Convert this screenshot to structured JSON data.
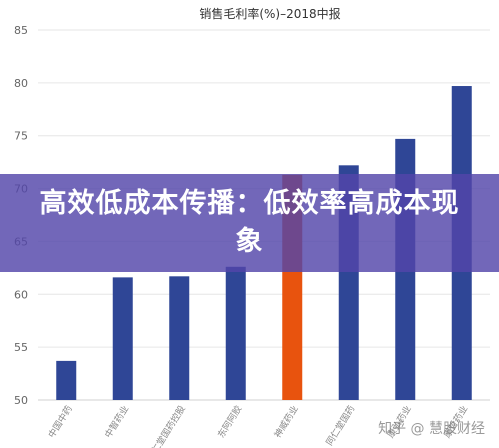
{
  "chart_data": {
    "type": "bar",
    "title": "销售毛利率(%)–2018中报",
    "categories": [
      "中国中药",
      "中智药业",
      "同仁堂国药控股",
      "东阿阿胶",
      "神威药业",
      "同仁堂国药",
      "康弘药业",
      "康哲药业"
    ],
    "values": [
      53.7,
      61.6,
      61.7,
      62.6,
      71.3,
      72.2,
      74.7,
      79.7
    ],
    "highlight_index": 4,
    "ylim": [
      50,
      85
    ],
    "yticks": [
      50,
      55,
      60,
      65,
      70,
      75,
      80,
      85
    ],
    "grid": true,
    "colors": {
      "bar": "#2f4696",
      "highlight": "#e8530e",
      "grid": "#e6e6e6"
    }
  },
  "banner": {
    "text": "高效低成本传播：低效率高成本现象",
    "background": "#5346aa"
  },
  "watermark": {
    "text": "知乎 @ 慧股财经"
  }
}
